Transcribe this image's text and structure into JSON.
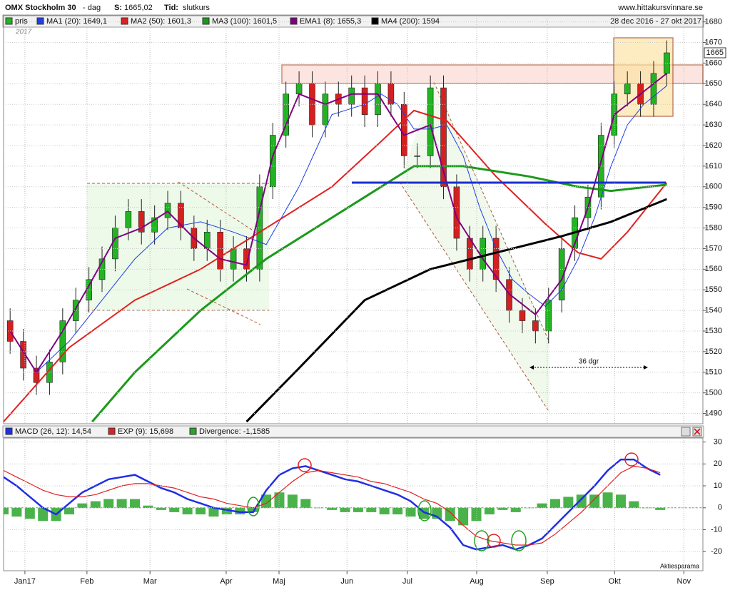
{
  "header": {
    "title": "OMX Stockholm 30",
    "period": "- dag",
    "last_label": "S:",
    "last_value": "1665,02",
    "time_label": "Tid:",
    "time_value": "slutkurs",
    "source": "www.hittakursvinnare.se",
    "date_range": "28 dec 2016 - 27 okt 2017",
    "year_label": "2017",
    "watermark": "Aktiesparama"
  },
  "chart_data": [
    {
      "type": "candlestick",
      "price_name": "pris",
      "up_color": "#22b422",
      "down_color": "#d42020",
      "last_price_label": "1665",
      "annotation": "36 dgr",
      "grid": true,
      "xlim": [
        0,
        213
      ],
      "ylim": [
        1485,
        1683
      ],
      "yticks": [
        1490,
        1500,
        1510,
        1520,
        1530,
        1540,
        1550,
        1560,
        1570,
        1580,
        1590,
        1600,
        1610,
        1620,
        1630,
        1640,
        1650,
        1660,
        1670,
        1680
      ],
      "x": [
        2,
        6,
        10,
        14,
        18,
        22,
        26,
        30,
        34,
        38,
        42,
        46,
        50,
        54,
        58,
        62,
        66,
        70,
        74,
        78,
        82,
        86,
        90,
        94,
        98,
        102,
        106,
        110,
        114,
        118,
        122,
        126,
        130,
        134,
        138,
        142,
        146,
        150,
        154,
        158,
        162,
        166,
        170,
        174,
        178,
        182,
        186,
        190,
        194,
        198,
        202
      ],
      "open": [
        1535,
        1525,
        1512,
        1505,
        1515,
        1535,
        1545,
        1555,
        1565,
        1580,
        1588,
        1578,
        1585,
        1592,
        1580,
        1570,
        1578,
        1560,
        1570,
        1560,
        1600,
        1625,
        1645,
        1650,
        1630,
        1645,
        1640,
        1648,
        1635,
        1650,
        1640,
        1615,
        1615,
        1648,
        1600,
        1575,
        1560,
        1575,
        1555,
        1540,
        1535,
        1530,
        1545,
        1570,
        1585,
        1595,
        1625,
        1645,
        1650,
        1640,
        1655
      ],
      "high": [
        1541,
        1531,
        1518,
        1521,
        1541,
        1551,
        1561,
        1571,
        1586,
        1594,
        1594,
        1591,
        1598,
        1598,
        1586,
        1584,
        1584,
        1576,
        1576,
        1606,
        1631,
        1651,
        1656,
        1656,
        1651,
        1651,
        1654,
        1654,
        1656,
        1656,
        1646,
        1621,
        1654,
        1654,
        1606,
        1581,
        1581,
        1581,
        1561,
        1546,
        1541,
        1551,
        1576,
        1591,
        1601,
        1631,
        1651,
        1656,
        1656,
        1661,
        1671
      ],
      "low": [
        1519,
        1506,
        1499,
        1499,
        1509,
        1529,
        1539,
        1549,
        1559,
        1574,
        1572,
        1572,
        1579,
        1574,
        1564,
        1564,
        1554,
        1554,
        1554,
        1554,
        1594,
        1619,
        1639,
        1624,
        1624,
        1634,
        1634,
        1629,
        1629,
        1634,
        1609,
        1609,
        1609,
        1594,
        1569,
        1554,
        1554,
        1549,
        1534,
        1529,
        1524,
        1524,
        1539,
        1564,
        1579,
        1589,
        1619,
        1639,
        1634,
        1634,
        1649
      ],
      "close": [
        1525,
        1512,
        1505,
        1515,
        1535,
        1545,
        1555,
        1565,
        1580,
        1588,
        1578,
        1585,
        1592,
        1580,
        1570,
        1578,
        1560,
        1570,
        1560,
        1600,
        1625,
        1645,
        1650,
        1630,
        1645,
        1640,
        1648,
        1635,
        1650,
        1640,
        1615,
        1615,
        1648,
        1600,
        1575,
        1560,
        1575,
        1555,
        1540,
        1535,
        1530,
        1545,
        1570,
        1585,
        1595,
        1625,
        1645,
        1650,
        1640,
        1655,
        1665
      ],
      "series": [
        {
          "name": "MA1 (20): 1649,1",
          "color": "#1f3ee6",
          "width": 1,
          "x": [
            10,
            20,
            30,
            40,
            50,
            60,
            70,
            80,
            90,
            100,
            110,
            115,
            120,
            125,
            130,
            135,
            140,
            145,
            150,
            155,
            160,
            165,
            170,
            175,
            180,
            185,
            190,
            195,
            202
          ],
          "values": [
            1510,
            1525,
            1545,
            1565,
            1580,
            1583,
            1578,
            1572,
            1600,
            1635,
            1640,
            1645,
            1640,
            1628,
            1628,
            1630,
            1615,
            1590,
            1570,
            1555,
            1548,
            1542,
            1550,
            1565,
            1585,
            1610,
            1630,
            1640,
            1649
          ]
        },
        {
          "name": "MA2 (50): 1601,3",
          "color": "#e02020",
          "width": 2,
          "x": [
            0,
            20,
            40,
            60,
            80,
            100,
            115,
            125,
            135,
            150,
            165,
            175,
            182,
            190,
            202
          ],
          "values": [
            1486,
            1522,
            1545,
            1560,
            1580,
            1600,
            1622,
            1637,
            1632,
            1605,
            1582,
            1568,
            1565,
            1578,
            1602
          ]
        },
        {
          "name": "MA3 (100): 1601,5",
          "color": "#1a9a1a",
          "width": 3,
          "x": [
            27,
            40,
            60,
            80,
            100,
            115,
            125,
            140,
            160,
            175,
            185,
            202
          ],
          "values": [
            1486,
            1510,
            1540,
            1565,
            1585,
            1600,
            1610,
            1610,
            1605,
            1600,
            1598,
            1601
          ]
        },
        {
          "name": "EMA1 (8): 1655,3",
          "color": "#800080",
          "width": 2,
          "x": [
            2,
            10,
            18,
            26,
            34,
            42,
            50,
            58,
            66,
            74,
            82,
            90,
            98,
            106,
            114,
            122,
            130,
            138,
            146,
            154,
            162,
            170,
            178,
            186,
            194,
            202
          ],
          "values": [
            1530,
            1510,
            1530,
            1552,
            1575,
            1580,
            1588,
            1575,
            1565,
            1562,
            1615,
            1645,
            1640,
            1645,
            1645,
            1625,
            1630,
            1585,
            1565,
            1548,
            1538,
            1555,
            1590,
            1635,
            1645,
            1655
          ]
        },
        {
          "name": "MA4 (200): 1594",
          "color": "#000000",
          "width": 3,
          "x": [
            74,
            90,
            110,
            130,
            150,
            170,
            185,
            202
          ],
          "values": [
            1486,
            1512,
            1545,
            1560,
            1568,
            1576,
            1583,
            1594
          ]
        }
      ]
    },
    {
      "type": "macd",
      "grid": true,
      "xlim": [
        0,
        213
      ],
      "ylim": [
        -28.7,
        31.8
      ],
      "yticks": [
        -20,
        -10,
        0,
        10,
        20,
        30
      ],
      "xticks": [
        {
          "value": 6.5,
          "label": "Jan17"
        },
        {
          "value": 25.4,
          "label": "Feb"
        },
        {
          "value": 44.6,
          "label": "Mar"
        },
        {
          "value": 67.8,
          "label": "Apr"
        },
        {
          "value": 83.9,
          "label": "Maj"
        },
        {
          "value": 104.6,
          "label": "Jun"
        },
        {
          "value": 123,
          "label": "Jul"
        },
        {
          "value": 144.1,
          "label": "Aug"
        },
        {
          "value": 165.6,
          "label": "Sep"
        },
        {
          "value": 186.1,
          "label": "Okt"
        },
        {
          "value": 207.2,
          "label": "Nov"
        }
      ],
      "x": [
        0,
        4,
        8,
        12,
        16,
        20,
        24,
        28,
        32,
        36,
        40,
        44,
        48,
        52,
        56,
        60,
        64,
        68,
        72,
        76,
        80,
        84,
        88,
        92,
        96,
        100,
        104,
        108,
        112,
        116,
        120,
        124,
        128,
        132,
        136,
        140,
        144,
        148,
        152,
        156,
        160,
        164,
        168,
        172,
        176,
        180,
        184,
        188,
        192,
        196,
        200
      ],
      "series": [
        {
          "name": "MACD (26, 12): 14,54",
          "color": "#1f2ee6",
          "kind": "line",
          "width": 2.5,
          "values": [
            14,
            10,
            5,
            0,
            -3,
            2,
            7,
            10,
            13,
            14,
            15,
            12,
            9,
            7,
            4,
            2,
            0,
            -1,
            -2,
            -2,
            8,
            15,
            18,
            19,
            17,
            15,
            13,
            12,
            10,
            8,
            6,
            3,
            -2,
            -4,
            -9,
            -17,
            -19,
            -18,
            -17,
            -19,
            -17,
            -14,
            -8,
            -2,
            4,
            10,
            17,
            22,
            22,
            18,
            15
          ]
        },
        {
          "name": "EXP (9): 15,698",
          "color": "#e02020",
          "kind": "line",
          "width": 1.2,
          "values": [
            17,
            14,
            11,
            8,
            6,
            5,
            5,
            6,
            8,
            10,
            11,
            11,
            10,
            9,
            7,
            5,
            4,
            2,
            1,
            0,
            2,
            7,
            12,
            16,
            17,
            16,
            15,
            14,
            12,
            11,
            9,
            7,
            4,
            2,
            -2,
            -8,
            -13,
            -15,
            -16,
            -17,
            -17,
            -16,
            -12,
            -7,
            -2,
            4,
            10,
            16,
            19,
            18,
            16
          ]
        },
        {
          "name": "Divergence: -1,1585",
          "color": "#2aa52a",
          "kind": "bar",
          "values": [
            -3,
            -4,
            -5,
            -6,
            -6,
            -3,
            2,
            3,
            4,
            4,
            4,
            1,
            -1,
            -2,
            -3,
            -3,
            -4,
            -3,
            -3,
            -2,
            6,
            7,
            6,
            4,
            0,
            -1,
            -2,
            -2,
            -2,
            -3,
            -3,
            -4,
            -5,
            -5,
            -6,
            -8,
            -6,
            -3,
            -1,
            -2,
            0,
            2,
            4,
            5,
            6,
            6,
            7,
            6,
            3,
            0,
            -1
          ]
        }
      ]
    }
  ]
}
